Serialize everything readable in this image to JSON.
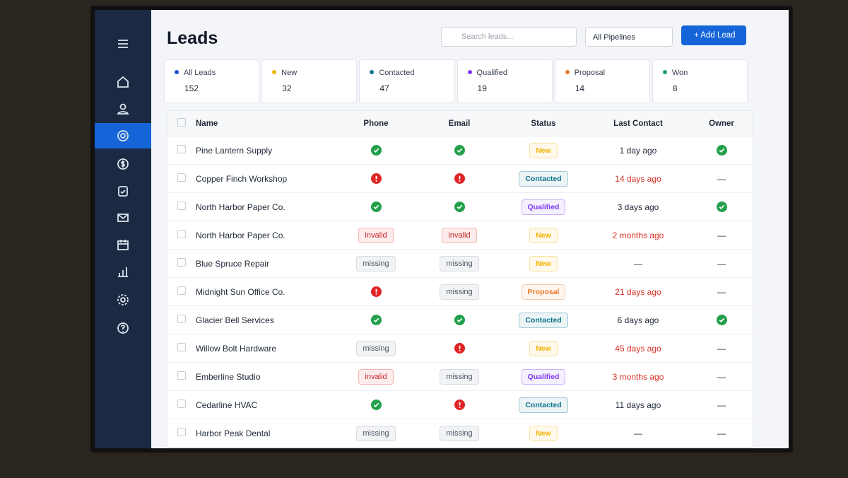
{
  "header": {
    "title": "Leads",
    "search_placeholder": "Search leads...",
    "pipeline": "All Pipelines",
    "add_button": "Add Lead"
  },
  "stats": [
    {
      "label": "All Leads",
      "value": 152,
      "color": "#1d4ed8"
    },
    {
      "label": "New",
      "value": 32,
      "color": "#f0b400"
    },
    {
      "label": "Contacted",
      "value": 47,
      "color": "#0e7490"
    },
    {
      "label": "Qualified",
      "value": 19,
      "color": "#7c3aed"
    },
    {
      "label": "Proposal",
      "value": 14,
      "color": "#ea7a27"
    },
    {
      "label": "Won",
      "value": 8,
      "color": "#22a06b"
    }
  ],
  "table": {
    "columns": [
      "Name",
      "Phone",
      "Email",
      "Status",
      "Last Contact",
      "Owner"
    ],
    "rows": [
      {
        "name": "Pine Lantern Supply",
        "phone": null,
        "email": null,
        "status": "New",
        "last_contact": "1 day ago",
        "owner": null
      },
      {
        "name": "Copper Finch Workshop",
        "phone": null,
        "email": null,
        "status": "Contacted",
        "last_contact": "14 days ago",
        "owner": "—"
      },
      {
        "name": "North Harbor Paper Co.",
        "phone": null,
        "email": null,
        "status": "Qualified",
        "last_contact": "3 days ago",
        "owner": null
      },
      {
        "name": "North Harbor Paper Co.",
        "phone": "invalid",
        "email": "invalid",
        "status": "New",
        "last_contact": "2 months ago",
        "owner": "—"
      },
      {
        "name": "Blue Spruce Repair",
        "phone": "missing",
        "email": "missing",
        "status": "New",
        "last_contact": "—",
        "owner": "—"
      },
      {
        "name": "Midnight Sun Office Co.",
        "phone": null,
        "email": "missing",
        "status": "Proposal",
        "last_contact": "21 days ago",
        "owner": "—"
      },
      {
        "name": "Glacier Bell Services",
        "phone": null,
        "email": null,
        "status": "Contacted",
        "last_contact": "6 days ago",
        "owner": null
      },
      {
        "name": "Willow Bolt Hardware",
        "phone": "missing",
        "email": null,
        "status": "New",
        "last_contact": "45 days ago",
        "owner": "—"
      },
      {
        "name": "Emberline Studio",
        "phone": "invalid",
        "email": "missing",
        "status": "Qualified",
        "last_contact": "3 months ago",
        "owner": "—"
      },
      {
        "name": "Cedarline HVAC",
        "phone": null,
        "email": null,
        "status": "Contacted",
        "last_contact": "11 days ago",
        "owner": "—"
      },
      {
        "name": "Harbor Peak Dental",
        "phone": "missing",
        "email": "missing",
        "status": "New",
        "last_contact": "—",
        "owner": "—"
      }
    ]
  }
}
